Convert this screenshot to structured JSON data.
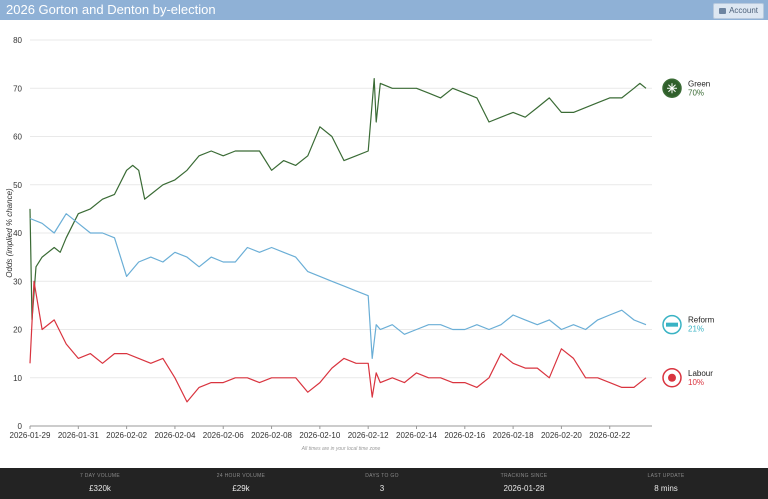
{
  "header": {
    "title": "2026 Gorton and Denton by-election",
    "account_label": "Account"
  },
  "footer": {
    "stats": [
      {
        "label": "7 DAY VOLUME",
        "value": "£320k"
      },
      {
        "label": "24 HOUR VOLUME",
        "value": "£29k"
      },
      {
        "label": "DAYS TO GO",
        "value": "3"
      },
      {
        "label": "TRACKING SINCE",
        "value": "2026-01-28"
      },
      {
        "label": "LAST UPDATE",
        "value": "8 mins"
      }
    ]
  },
  "chart_data": {
    "type": "line",
    "ylabel": "Odds (implied % chance)",
    "xlabel": "",
    "note": "All times are in your local time zone",
    "ylim": [
      0,
      80
    ],
    "yticks": [
      0,
      10,
      20,
      30,
      40,
      50,
      60,
      70,
      80
    ],
    "xlim": [
      "2026-01-29",
      "2026-02-23T18:00"
    ],
    "xticks": [
      "2026-01-29",
      "2026-01-31",
      "2026-02-02",
      "2026-02-04",
      "2026-02-06",
      "2026-02-08",
      "2026-02-10",
      "2026-02-12",
      "2026-02-14",
      "2026-02-16",
      "2026-02-18",
      "2026-02-20",
      "2026-02-22"
    ],
    "grid": true,
    "series": [
      {
        "name": "Green",
        "label": "70%",
        "color": "#3a6b35",
        "points": [
          [
            "2026-01-29T00:00",
            45
          ],
          [
            "2026-01-29T02:00",
            22
          ],
          [
            "2026-01-29T06:00",
            33
          ],
          [
            "2026-01-29T12:00",
            35
          ],
          [
            "2026-01-30T00:00",
            37
          ],
          [
            "2026-01-30T06:00",
            36
          ],
          [
            "2026-01-30T12:00",
            39
          ],
          [
            "2026-01-31T00:00",
            44
          ],
          [
            "2026-01-31T12:00",
            45
          ],
          [
            "2026-02-01T00:00",
            47
          ],
          [
            "2026-02-01T12:00",
            48
          ],
          [
            "2026-02-02T00:00",
            53
          ],
          [
            "2026-02-02T06:00",
            54
          ],
          [
            "2026-02-02T12:00",
            53
          ],
          [
            "2026-02-02T18:00",
            47
          ],
          [
            "2026-02-03T00:00",
            48
          ],
          [
            "2026-02-03T12:00",
            50
          ],
          [
            "2026-02-04T00:00",
            51
          ],
          [
            "2026-02-04T12:00",
            53
          ],
          [
            "2026-02-05T00:00",
            56
          ],
          [
            "2026-02-05T12:00",
            57
          ],
          [
            "2026-02-06T00:00",
            56
          ],
          [
            "2026-02-06T12:00",
            57
          ],
          [
            "2026-02-07T00:00",
            57
          ],
          [
            "2026-02-07T12:00",
            57
          ],
          [
            "2026-02-08T00:00",
            53
          ],
          [
            "2026-02-08T12:00",
            55
          ],
          [
            "2026-02-09T00:00",
            54
          ],
          [
            "2026-02-09T12:00",
            56
          ],
          [
            "2026-02-10T00:00",
            62
          ],
          [
            "2026-02-10T12:00",
            60
          ],
          [
            "2026-02-11T00:00",
            55
          ],
          [
            "2026-02-11T12:00",
            56
          ],
          [
            "2026-02-12T00:00",
            57
          ],
          [
            "2026-02-12T06:00",
            72
          ],
          [
            "2026-02-12T08:00",
            63
          ],
          [
            "2026-02-12T12:00",
            71
          ],
          [
            "2026-02-13T00:00",
            70
          ],
          [
            "2026-02-13T12:00",
            70
          ],
          [
            "2026-02-14T00:00",
            70
          ],
          [
            "2026-02-14T12:00",
            69
          ],
          [
            "2026-02-15T00:00",
            68
          ],
          [
            "2026-02-15T12:00",
            70
          ],
          [
            "2026-02-16T00:00",
            69
          ],
          [
            "2026-02-16T12:00",
            68
          ],
          [
            "2026-02-17T00:00",
            63
          ],
          [
            "2026-02-17T12:00",
            64
          ],
          [
            "2026-02-18T00:00",
            65
          ],
          [
            "2026-02-18T12:00",
            64
          ],
          [
            "2026-02-19T00:00",
            66
          ],
          [
            "2026-02-19T12:00",
            68
          ],
          [
            "2026-02-20T00:00",
            65
          ],
          [
            "2026-02-20T12:00",
            65
          ],
          [
            "2026-02-21T00:00",
            66
          ],
          [
            "2026-02-21T12:00",
            67
          ],
          [
            "2026-02-22T00:00",
            68
          ],
          [
            "2026-02-22T12:00",
            68
          ],
          [
            "2026-02-23T00:00",
            70
          ],
          [
            "2026-02-23T06:00",
            71
          ],
          [
            "2026-02-23T12:00",
            70
          ]
        ]
      },
      {
        "name": "Reform",
        "label": "21%",
        "color": "#6aaed6",
        "points": [
          [
            "2026-01-29T00:00",
            43
          ],
          [
            "2026-01-29T12:00",
            42
          ],
          [
            "2026-01-30T00:00",
            40
          ],
          [
            "2026-01-30T12:00",
            44
          ],
          [
            "2026-01-31T00:00",
            42
          ],
          [
            "2026-01-31T12:00",
            40
          ],
          [
            "2026-02-01T00:00",
            40
          ],
          [
            "2026-02-01T12:00",
            39
          ],
          [
            "2026-02-02T00:00",
            31
          ],
          [
            "2026-02-02T12:00",
            34
          ],
          [
            "2026-02-03T00:00",
            35
          ],
          [
            "2026-02-03T12:00",
            34
          ],
          [
            "2026-02-04T00:00",
            36
          ],
          [
            "2026-02-04T12:00",
            35
          ],
          [
            "2026-02-05T00:00",
            33
          ],
          [
            "2026-02-05T12:00",
            35
          ],
          [
            "2026-02-06T00:00",
            34
          ],
          [
            "2026-02-06T12:00",
            34
          ],
          [
            "2026-02-07T00:00",
            37
          ],
          [
            "2026-02-07T12:00",
            36
          ],
          [
            "2026-02-08T00:00",
            37
          ],
          [
            "2026-02-08T12:00",
            36
          ],
          [
            "2026-02-09T00:00",
            35
          ],
          [
            "2026-02-09T12:00",
            32
          ],
          [
            "2026-02-10T00:00",
            31
          ],
          [
            "2026-02-10T12:00",
            30
          ],
          [
            "2026-02-11T00:00",
            29
          ],
          [
            "2026-02-11T12:00",
            28
          ],
          [
            "2026-02-12T00:00",
            27
          ],
          [
            "2026-02-12T04:00",
            14
          ],
          [
            "2026-02-12T08:00",
            21
          ],
          [
            "2026-02-12T12:00",
            20
          ],
          [
            "2026-02-13T00:00",
            21
          ],
          [
            "2026-02-13T12:00",
            19
          ],
          [
            "2026-02-14T00:00",
            20
          ],
          [
            "2026-02-14T12:00",
            21
          ],
          [
            "2026-02-15T00:00",
            21
          ],
          [
            "2026-02-15T12:00",
            20
          ],
          [
            "2026-02-16T00:00",
            20
          ],
          [
            "2026-02-16T12:00",
            21
          ],
          [
            "2026-02-17T00:00",
            20
          ],
          [
            "2026-02-17T12:00",
            21
          ],
          [
            "2026-02-18T00:00",
            23
          ],
          [
            "2026-02-18T12:00",
            22
          ],
          [
            "2026-02-19T00:00",
            21
          ],
          [
            "2026-02-19T12:00",
            22
          ],
          [
            "2026-02-20T00:00",
            20
          ],
          [
            "2026-02-20T12:00",
            21
          ],
          [
            "2026-02-21T00:00",
            20
          ],
          [
            "2026-02-21T12:00",
            22
          ],
          [
            "2026-02-22T00:00",
            23
          ],
          [
            "2026-02-22T12:00",
            24
          ],
          [
            "2026-02-23T00:00",
            22
          ],
          [
            "2026-02-23T12:00",
            21
          ]
        ]
      },
      {
        "name": "Labour",
        "label": "10%",
        "color": "#d9343f",
        "points": [
          [
            "2026-01-29T00:00",
            13
          ],
          [
            "2026-01-29T04:00",
            30
          ],
          [
            "2026-01-29T12:00",
            20
          ],
          [
            "2026-01-30T00:00",
            22
          ],
          [
            "2026-01-30T12:00",
            17
          ],
          [
            "2026-01-31T00:00",
            14
          ],
          [
            "2026-01-31T12:00",
            15
          ],
          [
            "2026-02-01T00:00",
            13
          ],
          [
            "2026-02-01T12:00",
            15
          ],
          [
            "2026-02-02T00:00",
            15
          ],
          [
            "2026-02-02T12:00",
            14
          ],
          [
            "2026-02-03T00:00",
            13
          ],
          [
            "2026-02-03T12:00",
            14
          ],
          [
            "2026-02-04T00:00",
            10
          ],
          [
            "2026-02-04T12:00",
            5
          ],
          [
            "2026-02-05T00:00",
            8
          ],
          [
            "2026-02-05T12:00",
            9
          ],
          [
            "2026-02-06T00:00",
            9
          ],
          [
            "2026-02-06T12:00",
            10
          ],
          [
            "2026-02-07T00:00",
            10
          ],
          [
            "2026-02-07T12:00",
            9
          ],
          [
            "2026-02-08T00:00",
            10
          ],
          [
            "2026-02-08T12:00",
            10
          ],
          [
            "2026-02-09T00:00",
            10
          ],
          [
            "2026-02-09T12:00",
            7
          ],
          [
            "2026-02-10T00:00",
            9
          ],
          [
            "2026-02-10T12:00",
            12
          ],
          [
            "2026-02-11T00:00",
            14
          ],
          [
            "2026-02-11T12:00",
            13
          ],
          [
            "2026-02-12T00:00",
            13
          ],
          [
            "2026-02-12T04:00",
            6
          ],
          [
            "2026-02-12T08:00",
            11
          ],
          [
            "2026-02-12T12:00",
            9
          ],
          [
            "2026-02-13T00:00",
            10
          ],
          [
            "2026-02-13T12:00",
            9
          ],
          [
            "2026-02-14T00:00",
            11
          ],
          [
            "2026-02-14T12:00",
            10
          ],
          [
            "2026-02-15T00:00",
            10
          ],
          [
            "2026-02-15T12:00",
            9
          ],
          [
            "2026-02-16T00:00",
            9
          ],
          [
            "2026-02-16T12:00",
            8
          ],
          [
            "2026-02-17T00:00",
            10
          ],
          [
            "2026-02-17T12:00",
            15
          ],
          [
            "2026-02-18T00:00",
            13
          ],
          [
            "2026-02-18T12:00",
            12
          ],
          [
            "2026-02-19T00:00",
            12
          ],
          [
            "2026-02-19T12:00",
            10
          ],
          [
            "2026-02-20T00:00",
            16
          ],
          [
            "2026-02-20T12:00",
            14
          ],
          [
            "2026-02-21T00:00",
            10
          ],
          [
            "2026-02-21T12:00",
            10
          ],
          [
            "2026-02-22T00:00",
            9
          ],
          [
            "2026-02-22T12:00",
            8
          ],
          [
            "2026-02-23T00:00",
            8
          ],
          [
            "2026-02-23T12:00",
            10
          ]
        ]
      }
    ]
  },
  "candidates": [
    {
      "name": "Green",
      "pct": "70%",
      "color": "#3a6b35",
      "icon": "green-party-logo"
    },
    {
      "name": "Reform",
      "pct": "21%",
      "color": "#3ab3c4",
      "icon": "reform-logo"
    },
    {
      "name": "Labour",
      "pct": "10%",
      "color": "#d9343f",
      "icon": "labour-rose-logo"
    }
  ]
}
